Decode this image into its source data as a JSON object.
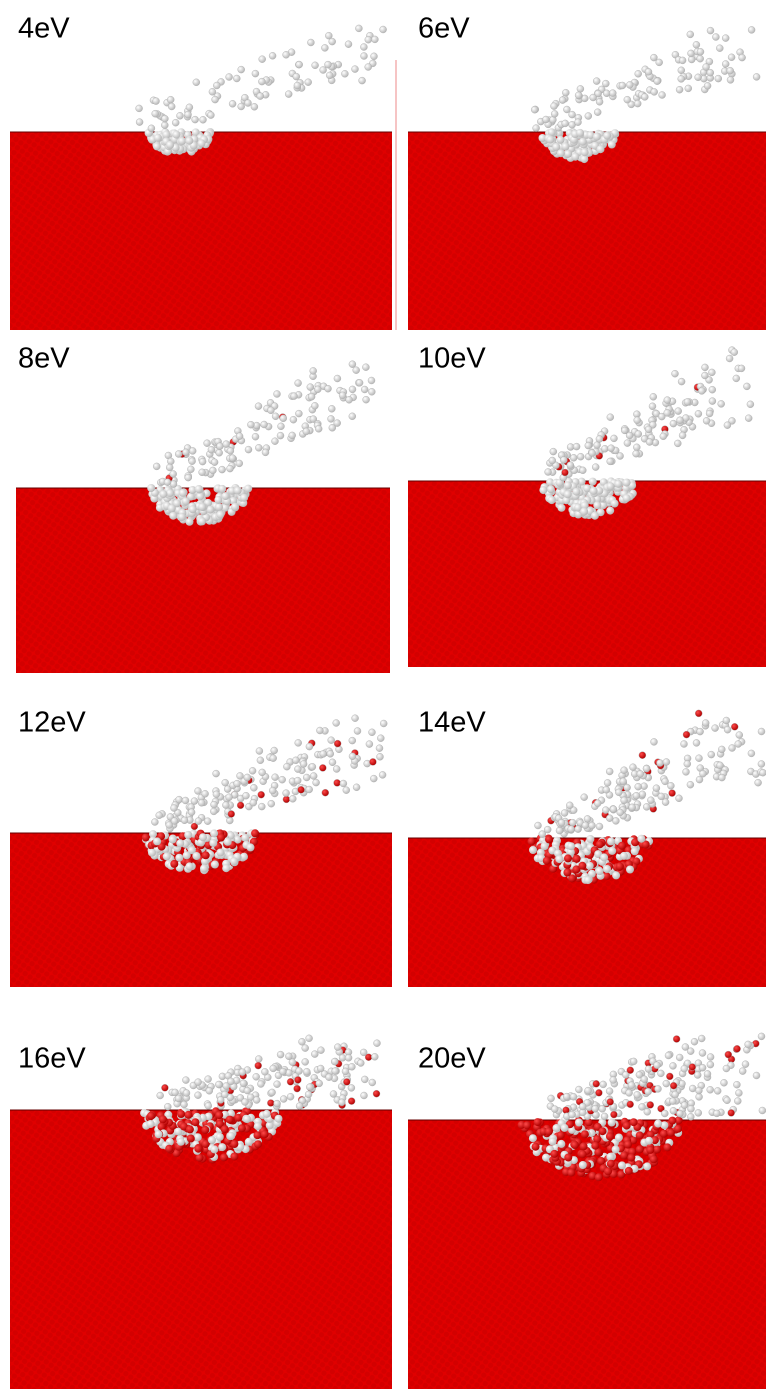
{
  "panels": [
    {
      "label": "4eV"
    },
    {
      "label": "6eV"
    },
    {
      "label": "8eV"
    },
    {
      "label": "10eV"
    },
    {
      "label": "12eV"
    },
    {
      "label": "14eV"
    },
    {
      "label": "16eV"
    },
    {
      "label": "20eV"
    }
  ]
}
